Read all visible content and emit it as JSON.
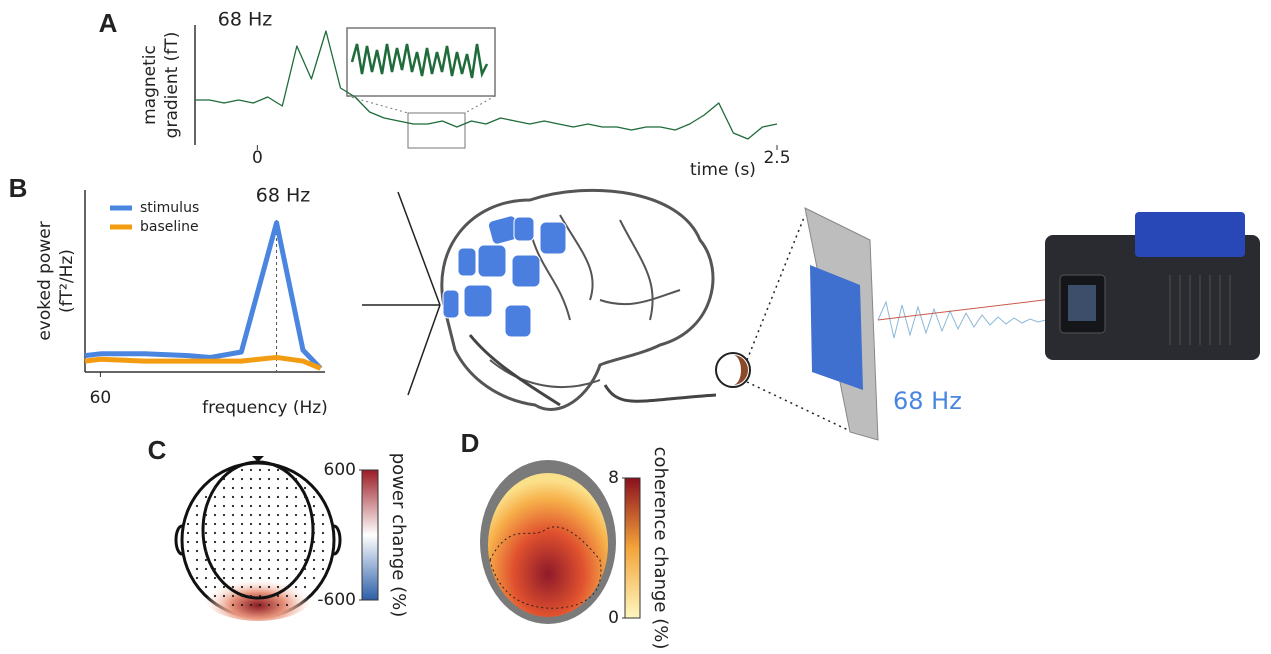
{
  "stimulus_label": "68 Hz",
  "chart_data": [
    {
      "type": "line",
      "panel": "A",
      "annotation": "68 Hz",
      "ylabel": [
        "magnetic",
        "gradient (fT)"
      ],
      "xlabel": "time (s)",
      "xlim": [
        -0.3,
        2.5
      ],
      "xticks": [
        0,
        2.5
      ],
      "ylim": [
        0,
        4
      ],
      "color": "#1f6b3a",
      "x": [
        -0.3,
        -0.23,
        -0.16,
        -0.09,
        -0.02,
        0.05,
        0.12,
        0.19,
        0.26,
        0.33,
        0.4,
        0.47,
        0.54,
        0.61,
        0.68,
        0.75,
        0.82,
        0.89,
        0.96,
        1.03,
        1.1,
        1.17,
        1.24,
        1.31,
        1.38,
        1.45,
        1.52,
        1.59,
        1.66,
        1.73,
        1.8,
        1.87,
        1.94,
        2.01,
        2.08,
        2.15,
        2.22,
        2.29,
        2.36,
        2.43,
        2.5
      ],
      "values": [
        1.5,
        1.5,
        1.4,
        1.5,
        1.4,
        1.6,
        1.3,
        3.3,
        2.2,
        3.8,
        1.9,
        1.6,
        1.1,
        0.9,
        0.8,
        0.7,
        0.7,
        0.8,
        0.6,
        0.8,
        0.7,
        0.9,
        0.8,
        0.7,
        0.8,
        0.7,
        0.6,
        0.7,
        0.6,
        0.6,
        0.5,
        0.6,
        0.6,
        0.5,
        0.7,
        1.0,
        1.4,
        0.4,
        0.2,
        0.6,
        0.7
      ]
    },
    {
      "type": "line",
      "panel": "B",
      "annotation": "68 Hz",
      "ylabel": [
        "evoked power",
        "(fT²/Hz)"
      ],
      "xlabel": "frequency (Hz)",
      "xlim": [
        59.3,
        70.2
      ],
      "xticks": [
        60
      ],
      "ylim": [
        0,
        1
      ],
      "vline": 68,
      "x": [
        59.3,
        60,
        62,
        64,
        65,
        66.4,
        68,
        69.2,
        70
      ],
      "series": [
        {
          "name": "stimulus",
          "color": "#4a86e0",
          "values": [
            0.09,
            0.1,
            0.1,
            0.09,
            0.08,
            0.11,
            0.82,
            0.12,
            0.02
          ]
        },
        {
          "name": "baseline",
          "color": "#f39c12",
          "values": [
            0.06,
            0.07,
            0.06,
            0.06,
            0.06,
            0.06,
            0.08,
            0.06,
            0.02
          ]
        }
      ]
    },
    {
      "type": "colorbar",
      "panel": "C",
      "label": "power change (%)",
      "clim": [
        -600,
        600
      ],
      "ticks": [
        600,
        -600
      ],
      "colors": [
        "#2c5fa8",
        "#ffffff",
        "#9b1c24"
      ]
    },
    {
      "type": "colorbar",
      "panel": "D",
      "label": "coherence change (%)",
      "clim": [
        0,
        8
      ],
      "ticks": [
        8,
        0
      ],
      "colors": [
        "#fdf7c0",
        "#f4a43a",
        "#8b0f1e"
      ]
    }
  ]
}
